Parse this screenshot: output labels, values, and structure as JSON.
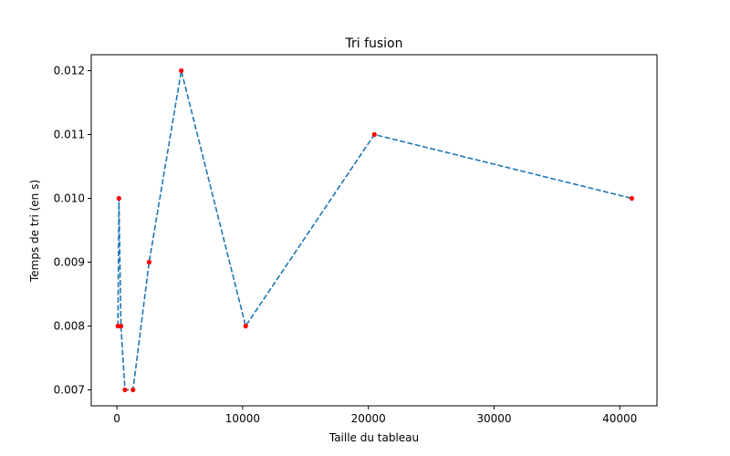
{
  "chart_data": {
    "type": "line",
    "title": "Tri fusion",
    "xlabel": "Taille du tableau",
    "ylabel": "Temps de tri (en s)",
    "xlim": [
      -2042,
      42962
    ],
    "ylim": [
      0.00675,
      0.01225
    ],
    "x_ticks": [
      0,
      10000,
      20000,
      30000,
      40000
    ],
    "x_tick_labels": [
      "0",
      "10000",
      "20000",
      "30000",
      "40000"
    ],
    "y_ticks": [
      0.007,
      0.008,
      0.009,
      0.01,
      0.011,
      0.012
    ],
    "y_tick_labels": [
      "0.007",
      "0.008",
      "0.009",
      "0.010",
      "0.011",
      "0.012"
    ],
    "grid": false,
    "series": [
      {
        "line_color": "#1f77b4",
        "line_style": "dashed",
        "marker_color": "#ff0000",
        "x": [
          80,
          160,
          320,
          640,
          1280,
          2560,
          5120,
          10240,
          20480,
          40960
        ],
        "y": [
          0.008,
          0.01,
          0.008,
          0.007,
          0.007,
          0.009,
          0.012,
          0.008,
          0.011,
          0.01
        ]
      }
    ]
  }
}
